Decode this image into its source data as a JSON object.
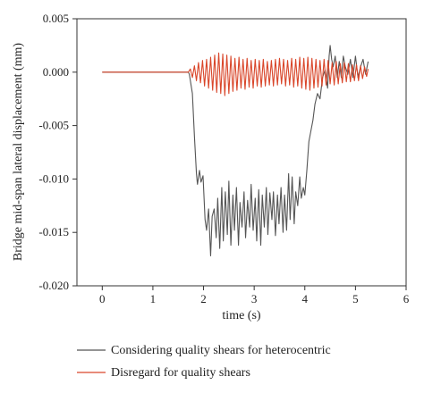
{
  "chart_data": {
    "type": "line",
    "xlabel": "time (s)",
    "ylabel": "Bridge mid-span lateral displacement (mm)",
    "xlim": [
      -0.5,
      6
    ],
    "ylim": [
      -0.02,
      0.005
    ],
    "xticks": [
      0,
      1,
      2,
      3,
      4,
      5,
      6
    ],
    "yticks": [
      0.005,
      0.0,
      -0.005,
      -0.01,
      -0.015,
      -0.02
    ],
    "ytick_labels": [
      "0.005",
      "0.000",
      "-0.005",
      "-0.010",
      "-0.015",
      "-0.020"
    ],
    "grid": false,
    "legend_placement": "below",
    "series": [
      {
        "name": "Considering quality shears for heterocentric",
        "color": "#555555",
        "x": [
          0,
          1.7,
          1.72,
          1.78,
          1.82,
          1.86,
          1.88,
          1.92,
          1.95,
          1.99,
          2.03,
          2.06,
          2.1,
          2.14,
          2.17,
          2.21,
          2.25,
          2.28,
          2.32,
          2.36,
          2.39,
          2.43,
          2.47,
          2.5,
          2.54,
          2.58,
          2.61,
          2.65,
          2.69,
          2.72,
          2.76,
          2.8,
          2.83,
          2.87,
          2.91,
          2.94,
          2.98,
          3.02,
          3.05,
          3.09,
          3.13,
          3.16,
          3.2,
          3.24,
          3.27,
          3.31,
          3.35,
          3.38,
          3.42,
          3.46,
          3.49,
          3.53,
          3.57,
          3.6,
          3.64,
          3.68,
          3.71,
          3.75,
          3.79,
          3.82,
          3.86,
          3.9,
          3.93,
          3.97,
          4.0,
          4.04,
          4.08,
          4.12,
          4.16,
          4.2,
          4.25,
          4.3,
          4.35,
          4.4,
          4.45,
          4.48,
          4.5,
          4.53,
          4.56,
          4.6,
          4.64,
          4.68,
          4.72,
          4.76,
          4.8,
          4.85,
          4.9,
          4.95,
          5.0,
          5.05,
          5.1,
          5.15,
          5.2,
          5.25
        ],
        "values": [
          0,
          0,
          -0.0002,
          -0.002,
          -0.006,
          -0.0095,
          -0.0105,
          -0.0092,
          -0.0103,
          -0.0097,
          -0.0138,
          -0.0148,
          -0.0128,
          -0.0172,
          -0.0135,
          -0.0128,
          -0.0155,
          -0.0118,
          -0.0165,
          -0.0108,
          -0.0158,
          -0.0112,
          -0.0152,
          -0.0102,
          -0.0162,
          -0.0115,
          -0.0148,
          -0.0108,
          -0.0162,
          -0.0122,
          -0.0145,
          -0.0112,
          -0.0155,
          -0.012,
          -0.0145,
          -0.0105,
          -0.0148,
          -0.0118,
          -0.0158,
          -0.011,
          -0.0162,
          -0.0115,
          -0.0145,
          -0.0108,
          -0.0152,
          -0.0113,
          -0.0138,
          -0.0112,
          -0.0153,
          -0.0115,
          -0.0142,
          -0.0108,
          -0.015,
          -0.0115,
          -0.0148,
          -0.0095,
          -0.0138,
          -0.0098,
          -0.0142,
          -0.0112,
          -0.0125,
          -0.0098,
          -0.0118,
          -0.0108,
          -0.0115,
          -0.0092,
          -0.0065,
          -0.0055,
          -0.0045,
          -0.003,
          -0.002,
          -0.0025,
          -0.0005,
          0.0002,
          -0.0015,
          0.0015,
          0.0025,
          0.0012,
          0.0005,
          0.0015,
          -0.0005,
          0.001,
          -0.0005,
          0.0015,
          0.0005,
          -0.0002,
          0.0012,
          -0.0005,
          0.0015,
          -0.0005,
          0.0005,
          0.0012,
          -0.0002,
          0.001
        ]
      },
      {
        "name": "Disregard for quality shears",
        "color": "#d9462a",
        "x": [
          0,
          1.7,
          1.74,
          1.78,
          1.82,
          1.86,
          1.9,
          1.94,
          1.98,
          2.02,
          2.06,
          2.1,
          2.14,
          2.18,
          2.22,
          2.26,
          2.3,
          2.34,
          2.38,
          2.42,
          2.46,
          2.5,
          2.54,
          2.58,
          2.62,
          2.66,
          2.7,
          2.74,
          2.78,
          2.82,
          2.86,
          2.9,
          2.94,
          2.98,
          3.02,
          3.06,
          3.1,
          3.14,
          3.18,
          3.22,
          3.26,
          3.3,
          3.34,
          3.38,
          3.42,
          3.46,
          3.5,
          3.54,
          3.58,
          3.62,
          3.66,
          3.7,
          3.74,
          3.78,
          3.82,
          3.86,
          3.9,
          3.94,
          3.98,
          4.02,
          4.06,
          4.1,
          4.14,
          4.18,
          4.22,
          4.26,
          4.3,
          4.34,
          4.38,
          4.42,
          4.46,
          4.5,
          4.54,
          4.58,
          4.62,
          4.66,
          4.7,
          4.74,
          4.78,
          4.82,
          4.86,
          4.9,
          4.94,
          4.98,
          5.02,
          5.06,
          5.1,
          5.14,
          5.18,
          5.22,
          5.25
        ],
        "values": [
          0,
          0,
          0.0003,
          -0.0005,
          0.0006,
          -0.0008,
          0.0009,
          -0.001,
          0.0011,
          -0.0013,
          0.0012,
          -0.0015,
          0.0014,
          -0.0017,
          0.0016,
          -0.0019,
          0.0018,
          -0.002,
          0.0017,
          -0.0022,
          0.0016,
          -0.002,
          0.0015,
          -0.0018,
          0.0013,
          -0.0017,
          0.0014,
          -0.0015,
          0.0012,
          -0.0016,
          0.0013,
          -0.0014,
          0.0011,
          -0.0015,
          0.0012,
          -0.0013,
          0.0011,
          -0.0014,
          0.0012,
          -0.0013,
          0.001,
          -0.0012,
          0.0011,
          -0.0013,
          0.0012,
          -0.0012,
          0.0013,
          -0.0011,
          0.0012,
          -0.0013,
          0.0011,
          -0.0012,
          0.0013,
          -0.0014,
          0.0012,
          -0.0013,
          0.0014,
          -0.0015,
          0.0013,
          -0.0016,
          0.0014,
          -0.0017,
          0.0013,
          -0.0015,
          0.0012,
          -0.0014,
          0.0011,
          -0.0013,
          0.0012,
          -0.0012,
          0.0011,
          -0.0011,
          0.0009,
          -0.0012,
          0.001,
          -0.0011,
          0.0008,
          -0.001,
          0.0009,
          -0.0009,
          0.0008,
          -0.0009,
          0.0007,
          -0.0008,
          0.0007,
          -0.0008,
          0.0006,
          -0.0006,
          0.0005,
          -0.0004,
          0.0003
        ]
      }
    ]
  }
}
